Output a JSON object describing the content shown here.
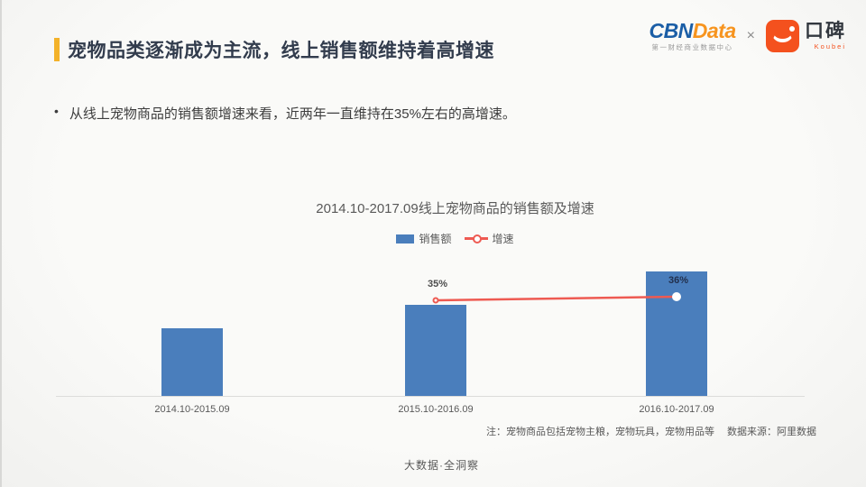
{
  "slide": {
    "title": "宠物品类逐渐成为主流，线上销售额维持着高增速",
    "bullet_marker": "•",
    "bullet": "从线上宠物商品的销售额增速来看，近两年一直维持在35%左右的高增速。",
    "note": "注：宠物商品包括宠物主粮，宠物玩具，宠物用品等",
    "source": "数据来源：阿里数据",
    "footer": "大数据·全洞察"
  },
  "logos": {
    "cbn": {
      "part1": "CBN",
      "part2": "Data",
      "subtitle": "第一财经商业数据中心"
    },
    "separator": "×",
    "koubei": {
      "name": "口碑",
      "latin": "Koubei"
    }
  },
  "colors": {
    "accent": "#f3b229",
    "title_text": "#323c4d",
    "bar": "#4a7ebc",
    "line": "#ee5a52",
    "cbn_blue": "#1b5ea6",
    "cbn_orange": "#f7941e",
    "koubei_orange": "#f4511e"
  },
  "chart_data": {
    "type": "bar",
    "title": "2014.10-2017.09线上宠物商品的销售额及增速",
    "categories": [
      "2014.10-2015.09",
      "2015.10-2016.09",
      "2016.10-2017.09"
    ],
    "series": [
      {
        "name": "销售额",
        "type": "bar",
        "color": "#4a7ebc",
        "values": [
          100,
          135,
          184
        ],
        "values_note": "no y-axis labels shown; values are relative index estimated from bar heights"
      },
      {
        "name": "增速",
        "type": "line",
        "color": "#ee5a52",
        "unit": "%",
        "values": [
          null,
          35,
          36
        ],
        "labels": [
          "",
          "35%",
          "36%"
        ],
        "marker_styles": [
          null,
          "open",
          "solid"
        ]
      }
    ],
    "legend_position": "top-center",
    "gridlines": false,
    "y_axis_labels": false
  }
}
